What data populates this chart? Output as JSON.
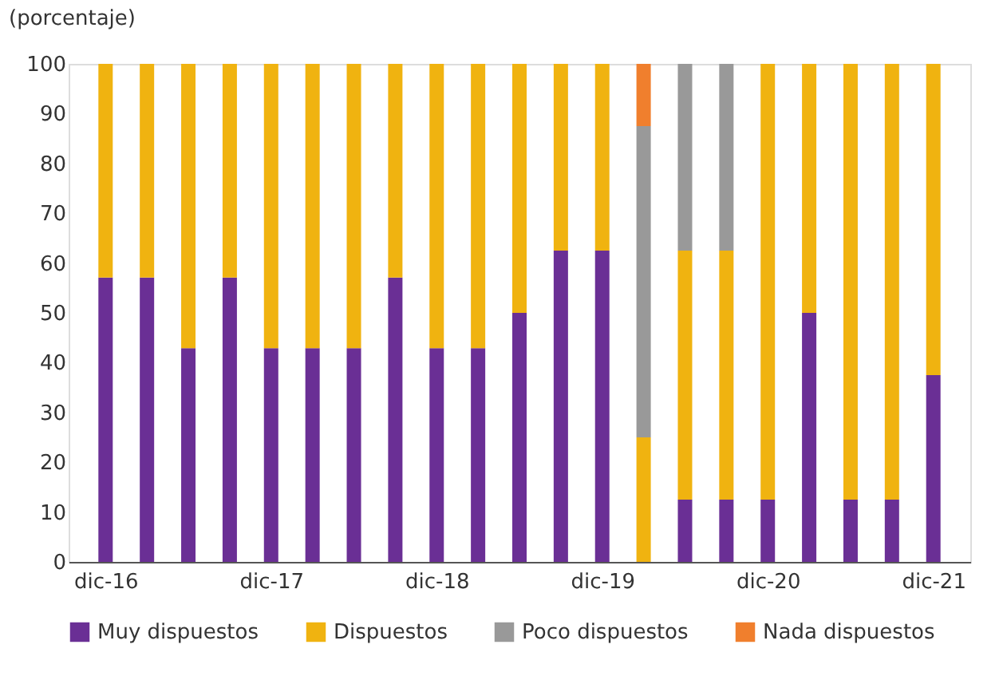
{
  "chart_data": {
    "type": "bar",
    "stacked": true,
    "ylabel": "(porcentaje)",
    "categories": [
      "dic-16",
      null,
      null,
      null,
      "dic-17",
      null,
      null,
      null,
      "dic-18",
      null,
      null,
      null,
      "dic-19",
      null,
      null,
      null,
      "dic-20",
      null,
      null,
      null,
      "dic-21"
    ],
    "series": [
      {
        "name": "Muy dispuestos",
        "color": "#6a2f95",
        "values": [
          57.1,
          57.1,
          42.9,
          57.1,
          42.9,
          42.9,
          42.9,
          57.1,
          42.9,
          42.9,
          50,
          62.5,
          62.5,
          0,
          12.5,
          12.5,
          12.5,
          50,
          12.5,
          12.5,
          37.5
        ]
      },
      {
        "name": "Dispuestos",
        "color": "#f0b310",
        "values": [
          42.9,
          42.9,
          57.1,
          42.9,
          57.1,
          57.1,
          57.1,
          42.9,
          57.1,
          57.1,
          50,
          37.5,
          37.5,
          25,
          50,
          50,
          87.5,
          50,
          87.5,
          87.5,
          62.5
        ]
      },
      {
        "name": "Poco dispuestos",
        "color": "#999999",
        "values": [
          0,
          0,
          0,
          0,
          0,
          0,
          0,
          0,
          0,
          0,
          0,
          0,
          0,
          62.5,
          37.5,
          37.5,
          0,
          0,
          0,
          0,
          0
        ]
      },
      {
        "name": "Nada dispuestos",
        "color": "#f07f2d",
        "values": [
          0,
          0,
          0,
          0,
          0,
          0,
          0,
          0,
          0,
          0,
          0,
          0,
          0,
          12.5,
          0,
          0,
          0,
          0,
          0,
          0,
          0
        ]
      }
    ],
    "ylim": [
      0,
      100
    ],
    "yticks": [
      0,
      10,
      20,
      30,
      40,
      50,
      60,
      70,
      80,
      90,
      100
    ],
    "grid": false,
    "legend": "bottom"
  }
}
